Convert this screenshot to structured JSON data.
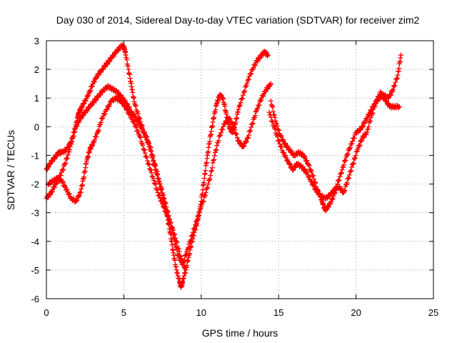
{
  "chart_data": {
    "type": "scatter",
    "title": "Day 030 of 2014, Sidereal Day-to-day VTEC variation (SDTVAR) for receiver zim2",
    "xlabel": "GPS time / hours",
    "ylabel": "SDTVAR / TECUs",
    "xlim": [
      0,
      25
    ],
    "ylim": [
      -6,
      3
    ],
    "x_ticks": [
      "0",
      "5",
      "10",
      "15",
      "20",
      "25"
    ],
    "y_ticks": [
      "3",
      "2",
      "1",
      "0",
      "-1",
      "-2",
      "-3",
      "-4",
      "-5",
      "-6"
    ],
    "grid": true,
    "legend": "none",
    "marker": "plus",
    "color": "#ff0000",
    "series": [
      {
        "x": [
          0.0,
          0.3,
          0.6,
          0.9,
          1.2,
          1.5,
          1.8,
          2.0,
          2.1,
          2.2,
          2.4,
          2.7,
          3.0,
          3.3,
          3.6,
          3.9,
          4.2,
          4.5,
          4.8,
          5.0,
          5.1,
          5.3,
          5.5,
          5.7,
          6.0,
          6.3,
          6.6,
          6.9,
          7.2,
          7.5,
          7.8,
          8.0,
          8.2,
          8.4,
          8.6,
          8.7,
          8.8,
          9.0,
          9.2,
          9.4,
          9.6,
          9.8,
          10.0,
          10.2,
          10.4,
          10.6,
          10.8,
          11.0,
          11.2,
          11.4,
          11.6,
          11.8,
          12.0,
          12.2,
          12.4,
          12.7,
          13.0,
          13.3,
          13.6,
          13.9,
          14.1,
          14.3
        ],
        "y": [
          -2.5,
          -2.3,
          -2.0,
          -1.7,
          -1.3,
          -0.8,
          -0.2,
          0.3,
          0.5,
          0.6,
          0.8,
          1.1,
          1.5,
          1.8,
          2.0,
          2.2,
          2.4,
          2.6,
          2.8,
          2.8,
          2.6,
          2.0,
          1.4,
          0.8,
          0.3,
          -0.2,
          -0.6,
          -1.2,
          -1.8,
          -2.4,
          -3.1,
          -3.7,
          -4.4,
          -5.0,
          -5.4,
          -5.6,
          -5.4,
          -5.0,
          -4.5,
          -4.0,
          -3.6,
          -3.2,
          -2.6,
          -1.8,
          -1.0,
          -0.3,
          0.3,
          0.8,
          1.1,
          1.0,
          0.5,
          0.0,
          -0.2,
          0.1,
          0.6,
          1.1,
          1.6,
          2.0,
          2.3,
          2.5,
          2.6,
          2.5
        ]
      },
      {
        "x": [
          0.0,
          0.2,
          0.5,
          0.8,
          1.0,
          1.3,
          1.6,
          1.9,
          2.2,
          2.5,
          2.8,
          3.1,
          3.4,
          3.7,
          4.0,
          4.3,
          4.6,
          4.9,
          5.2,
          5.5,
          5.8,
          6.1,
          6.4,
          6.7,
          7.0,
          7.3,
          7.6,
          7.9,
          8.2,
          8.5,
          8.8,
          9.1,
          9.4,
          9.7,
          10.0,
          10.3,
          10.6,
          10.9,
          11.2,
          11.5,
          11.8,
          12.1,
          12.4,
          12.7,
          13.0,
          13.3,
          13.6,
          13.9,
          14.2,
          14.5
        ],
        "y": [
          -1.5,
          -1.3,
          -1.1,
          -0.9,
          -0.9,
          -0.8,
          -0.5,
          0.0,
          0.3,
          0.5,
          0.7,
          0.9,
          1.1,
          1.3,
          1.4,
          1.3,
          1.2,
          1.0,
          0.8,
          0.5,
          0.3,
          0.0,
          -0.3,
          -0.7,
          -1.3,
          -1.9,
          -2.5,
          -3.1,
          -3.8,
          -4.5,
          -4.8,
          -4.3,
          -3.8,
          -3.3,
          -2.8,
          -2.3,
          -1.7,
          -0.9,
          -0.3,
          0.1,
          0.3,
          0.0,
          -0.5,
          -0.7,
          -0.4,
          0.1,
          0.6,
          1.0,
          1.3,
          1.5
        ]
      },
      {
        "x": [
          0.1,
          0.4,
          0.7,
          1.0,
          1.3,
          1.6,
          1.9,
          2.2,
          2.4,
          2.6,
          2.8,
          3.0,
          3.3,
          3.6,
          3.9,
          4.2,
          4.5,
          4.8,
          5.1,
          5.4,
          5.7,
          6.0,
          6.3,
          6.6,
          6.9,
          7.2,
          7.5,
          7.8,
          8.1,
          8.4,
          8.7,
          9.0
        ],
        "y": [
          -2.0,
          -1.9,
          -1.8,
          -1.9,
          -2.2,
          -2.5,
          -2.6,
          -2.3,
          -1.8,
          -1.2,
          -0.8,
          -0.6,
          -0.2,
          0.3,
          0.6,
          0.9,
          1.0,
          0.9,
          0.7,
          0.4,
          0.1,
          -0.3,
          -0.8,
          -1.3,
          -1.8,
          -2.3,
          -2.7,
          -3.1,
          -3.5,
          -4.0,
          -4.6,
          -5.0
        ]
      },
      {
        "x": [
          14.5,
          14.8,
          15.1,
          15.4,
          15.7,
          16.0,
          16.3,
          16.6,
          16.9,
          17.2,
          17.5,
          17.8,
          18.0,
          18.2,
          18.5,
          18.8,
          19.1,
          19.4,
          19.7,
          20.0,
          20.3,
          20.6,
          20.9,
          21.2,
          21.5,
          21.8,
          22.1,
          22.4,
          22.7,
          22.9
        ],
        "y": [
          0.9,
          0.2,
          -0.3,
          -0.6,
          -0.8,
          -1.0,
          -0.9,
          -1.0,
          -1.3,
          -1.7,
          -2.2,
          -2.6,
          -2.9,
          -2.8,
          -2.5,
          -2.0,
          -1.5,
          -1.0,
          -0.6,
          -0.2,
          -0.1,
          0.2,
          0.5,
          0.8,
          1.0,
          1.1,
          1.0,
          1.3,
          1.8,
          2.5
        ]
      },
      {
        "x": [
          14.4,
          14.7,
          15.0,
          15.3,
          15.6,
          15.9,
          16.2,
          16.5,
          16.8,
          17.1,
          17.4,
          17.7,
          18.0,
          18.3,
          18.6,
          18.9,
          19.2,
          19.5,
          19.8,
          20.1,
          20.4,
          20.7,
          21.0,
          21.3,
          21.6,
          21.9,
          22.2,
          22.5,
          22.8
        ],
        "y": [
          0.5,
          0.0,
          -0.5,
          -0.9,
          -1.2,
          -1.5,
          -1.3,
          -1.4,
          -1.6,
          -1.9,
          -2.2,
          -2.4,
          -2.5,
          -2.4,
          -2.2,
          -2.1,
          -2.3,
          -1.8,
          -1.3,
          -0.8,
          -0.4,
          -0.2,
          0.4,
          0.9,
          1.2,
          0.9,
          0.7,
          0.7,
          0.7
        ]
      }
    ]
  }
}
